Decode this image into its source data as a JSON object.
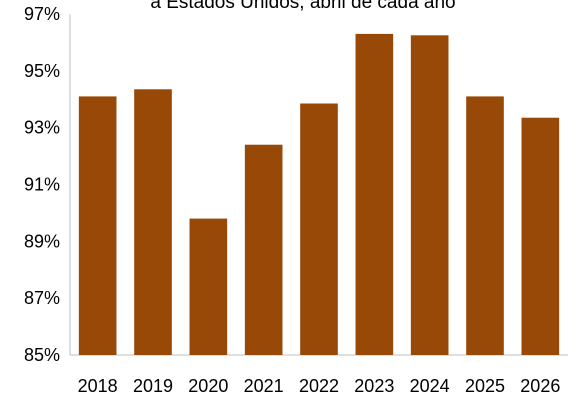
{
  "chart_data": {
    "type": "bar",
    "title": "a Estados Unidos, abril de cada año",
    "categories": [
      "2018",
      "2019",
      "2020",
      "2021",
      "2022",
      "2023",
      "2024",
      "2025",
      "2026"
    ],
    "values": [
      94.1,
      94.35,
      89.8,
      92.4,
      93.85,
      96.3,
      96.25,
      94.1,
      93.35
    ],
    "y_ticks": [
      "85%",
      "87%",
      "89%",
      "91%",
      "93%",
      "95%",
      "97%"
    ],
    "ylim": [
      85,
      97
    ],
    "xlabel": "",
    "ylabel": "",
    "grid": false,
    "legend": "none",
    "bar_color": "#984807"
  }
}
